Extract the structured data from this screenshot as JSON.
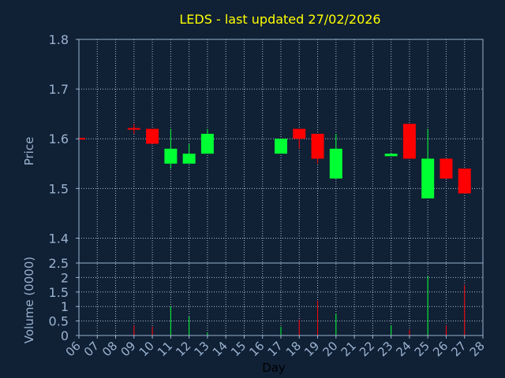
{
  "chart_data": [
    {
      "type": "candlestick",
      "title": "LEDS - last updated 27/02/2026",
      "ylabel": "Price",
      "ylim": [
        1.35,
        1.8
      ],
      "yticks": [
        "1.4",
        "1.5",
        "1.6",
        "1.7",
        "1.8"
      ],
      "grid": true,
      "colors": {
        "up": "#00ff33",
        "down": "#ff0000",
        "title": "#ffff00",
        "background": "#102035",
        "text": "#9ab3cf"
      },
      "candles": [
        {
          "day": "06",
          "open": 1.6,
          "high": 1.6,
          "low": 1.6,
          "close": 1.6,
          "dir": "down"
        },
        {
          "day": "09",
          "open": 1.62,
          "high": 1.63,
          "low": 1.61,
          "close": 1.62,
          "dir": "down"
        },
        {
          "day": "10",
          "open": 1.62,
          "high": 1.62,
          "low": 1.59,
          "close": 1.59,
          "dir": "down"
        },
        {
          "day": "11",
          "open": 1.55,
          "high": 1.62,
          "low": 1.54,
          "close": 1.58,
          "dir": "up"
        },
        {
          "day": "12",
          "open": 1.55,
          "high": 1.59,
          "low": 1.55,
          "close": 1.57,
          "dir": "up"
        },
        {
          "day": "13",
          "open": 1.57,
          "high": 1.62,
          "low": 1.57,
          "close": 1.61,
          "dir": "up"
        },
        {
          "day": "17",
          "open": 1.57,
          "high": 1.6,
          "low": 1.57,
          "close": 1.6,
          "dir": "up"
        },
        {
          "day": "18",
          "open": 1.62,
          "high": 1.62,
          "low": 1.58,
          "close": 1.6,
          "dir": "down"
        },
        {
          "day": "19",
          "open": 1.61,
          "high": 1.61,
          "low": 1.55,
          "close": 1.56,
          "dir": "down"
        },
        {
          "day": "20",
          "open": 1.52,
          "high": 1.61,
          "low": 1.52,
          "close": 1.58,
          "dir": "up"
        },
        {
          "day": "23",
          "open": 1.565,
          "high": 1.57,
          "low": 1.565,
          "close": 1.57,
          "dir": "up"
        },
        {
          "day": "24",
          "open": 1.63,
          "high": 1.63,
          "low": 1.56,
          "close": 1.56,
          "dir": "down"
        },
        {
          "day": "25",
          "open": 1.48,
          "high": 1.62,
          "low": 1.48,
          "close": 1.56,
          "dir": "up"
        },
        {
          "day": "26",
          "open": 1.56,
          "high": 1.56,
          "low": 1.52,
          "close": 1.52,
          "dir": "down"
        },
        {
          "day": "27",
          "open": 1.54,
          "high": 1.54,
          "low": 1.49,
          "close": 1.49,
          "dir": "down"
        }
      ]
    },
    {
      "type": "bar",
      "ylabel": "Volume (0000)",
      "xlabel": "Day",
      "ylim": [
        0,
        2.5
      ],
      "yticks": [
        "0",
        "0.5",
        "1",
        "1.5",
        "2",
        "2.5"
      ],
      "categories": [
        "06",
        "07",
        "08",
        "09",
        "10",
        "11",
        "12",
        "13",
        "14",
        "15",
        "16",
        "17",
        "18",
        "19",
        "20",
        "21",
        "22",
        "23",
        "24",
        "25",
        "26",
        "27",
        "28"
      ],
      "volumes": [
        {
          "day": "09",
          "value": 0.35,
          "dir": "down"
        },
        {
          "day": "10",
          "value": 0.3,
          "dir": "down"
        },
        {
          "day": "11",
          "value": 1.0,
          "dir": "up"
        },
        {
          "day": "12",
          "value": 0.65,
          "dir": "up"
        },
        {
          "day": "13",
          "value": 0.1,
          "dir": "up"
        },
        {
          "day": "17",
          "value": 0.3,
          "dir": "up"
        },
        {
          "day": "18",
          "value": 0.55,
          "dir": "down"
        },
        {
          "day": "19",
          "value": 1.2,
          "dir": "down"
        },
        {
          "day": "20",
          "value": 0.75,
          "dir": "up"
        },
        {
          "day": "23",
          "value": 0.35,
          "dir": "up"
        },
        {
          "day": "24",
          "value": 0.2,
          "dir": "down"
        },
        {
          "day": "25",
          "value": 2.05,
          "dir": "up"
        },
        {
          "day": "26",
          "value": 0.35,
          "dir": "down"
        },
        {
          "day": "27",
          "value": 1.75,
          "dir": "down"
        }
      ]
    }
  ]
}
